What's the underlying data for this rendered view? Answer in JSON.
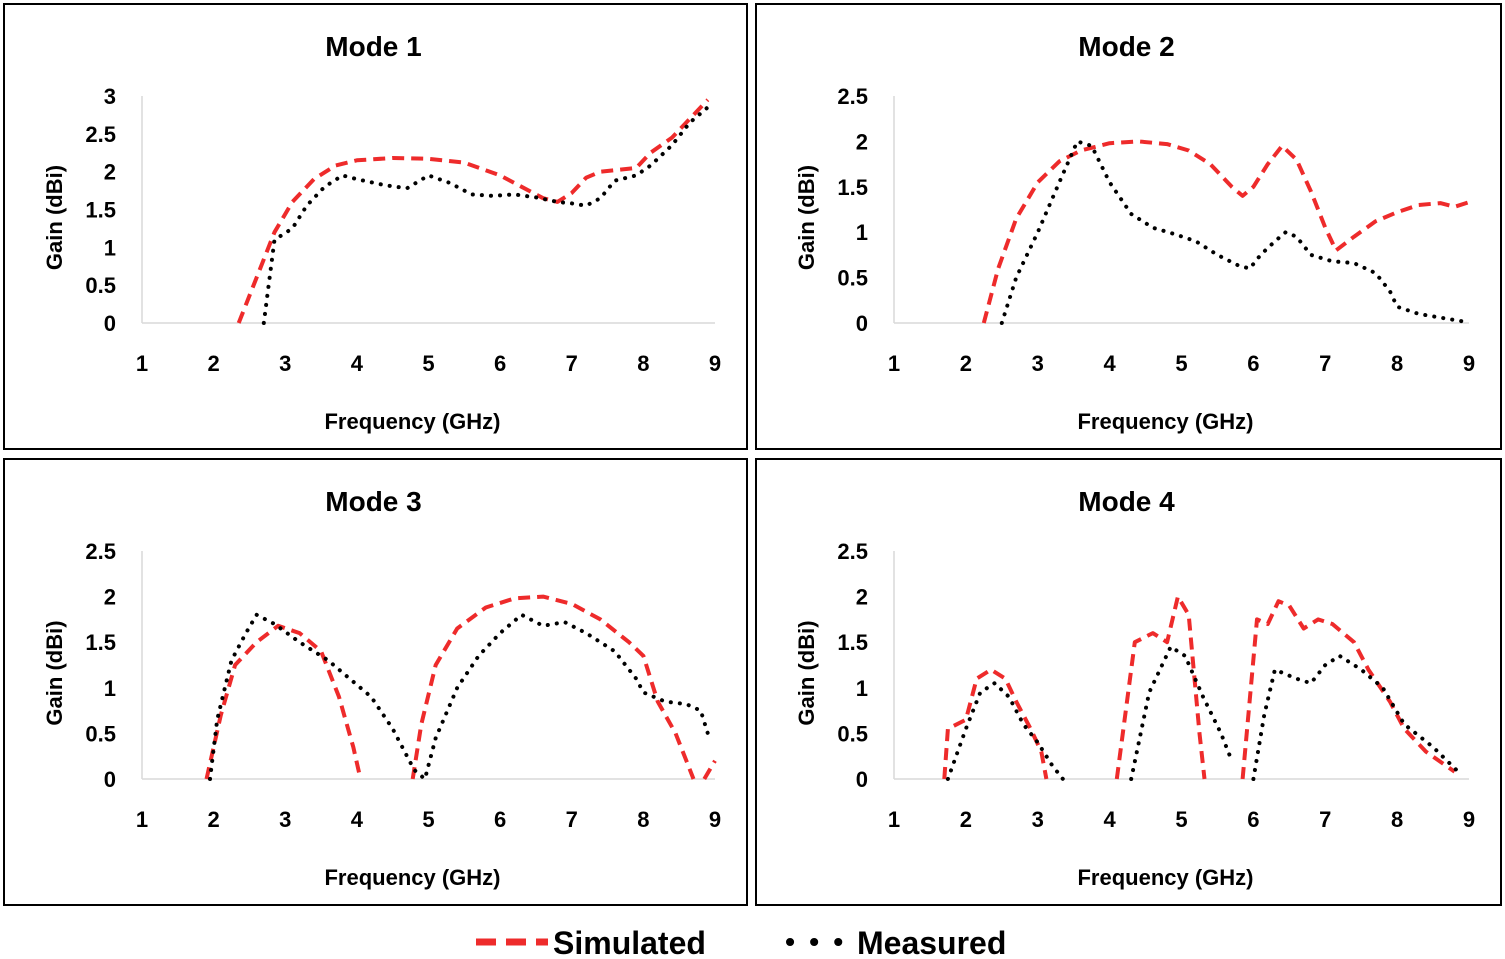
{
  "legend": {
    "simulated": "Simulated",
    "measured": "Measured",
    "simulated_color": "#ee2b2b",
    "measured_color": "#000000"
  },
  "chart_data": [
    {
      "type": "line",
      "title": "Mode 1",
      "xlabel": "Frequency (GHz)",
      "ylabel": "Gain (dBi)",
      "xlim": [
        1,
        9
      ],
      "ylim": [
        0,
        3
      ],
      "xticks": [
        1,
        2,
        3,
        4,
        5,
        6,
        7,
        8,
        9
      ],
      "yticks": [
        0,
        0.5,
        1,
        1.5,
        2,
        2.5,
        3
      ],
      "ytick_labels": [
        "0",
        "0.5",
        "1",
        "1.5",
        "2",
        "2.5",
        "3"
      ],
      "series": [
        {
          "name": "Simulated",
          "x": [
            2.35,
            2.6,
            2.85,
            3.1,
            3.4,
            3.7,
            4.0,
            4.5,
            5.0,
            5.5,
            6.0,
            6.3,
            6.6,
            6.8,
            7.0,
            7.2,
            7.4,
            7.6,
            7.9,
            8.1,
            8.4,
            8.7,
            8.9
          ],
          "y": [
            0,
            0.6,
            1.2,
            1.6,
            1.9,
            2.08,
            2.15,
            2.18,
            2.17,
            2.12,
            1.95,
            1.8,
            1.65,
            1.6,
            1.72,
            1.92,
            2.0,
            2.02,
            2.05,
            2.25,
            2.45,
            2.75,
            2.95
          ]
        },
        {
          "name": "Measured",
          "x": [
            2.7,
            2.85,
            3.1,
            3.3,
            3.55,
            3.8,
            4.0,
            4.4,
            4.7,
            5.0,
            5.3,
            5.6,
            5.9,
            6.2,
            6.5,
            6.8,
            7.0,
            7.2,
            7.4,
            7.6,
            7.9,
            8.1,
            8.4,
            8.65,
            8.9
          ],
          "y": [
            0,
            1.1,
            1.25,
            1.55,
            1.8,
            1.95,
            1.9,
            1.82,
            1.78,
            1.95,
            1.85,
            1.7,
            1.68,
            1.7,
            1.66,
            1.6,
            1.58,
            1.55,
            1.65,
            1.88,
            1.95,
            2.08,
            2.35,
            2.65,
            2.85
          ]
        }
      ]
    },
    {
      "type": "line",
      "title": "Mode 2",
      "xlabel": "Frequency (GHz)",
      "ylabel": "Gain (dBi)",
      "xlim": [
        1,
        9
      ],
      "ylim": [
        0,
        2.5
      ],
      "xticks": [
        1,
        2,
        3,
        4,
        5,
        6,
        7,
        8,
        9
      ],
      "yticks": [
        0,
        0.5,
        1,
        1.5,
        2,
        2.5
      ],
      "ytick_labels": [
        "0",
        "0.5",
        "1",
        "1.5",
        "2",
        "2.5"
      ],
      "series": [
        {
          "name": "Simulated",
          "x": [
            2.25,
            2.45,
            2.7,
            3.0,
            3.3,
            3.6,
            4.0,
            4.4,
            4.8,
            5.1,
            5.4,
            5.7,
            5.85,
            6.0,
            6.2,
            6.4,
            6.6,
            6.8,
            7.0,
            7.15,
            7.4,
            7.7,
            8.0,
            8.3,
            8.6,
            8.8,
            9.0
          ],
          "y": [
            0,
            0.6,
            1.15,
            1.55,
            1.78,
            1.9,
            1.98,
            2.0,
            1.97,
            1.9,
            1.75,
            1.5,
            1.4,
            1.5,
            1.75,
            1.95,
            1.8,
            1.45,
            1.05,
            0.8,
            0.95,
            1.12,
            1.22,
            1.3,
            1.32,
            1.28,
            1.33
          ]
        },
        {
          "name": "Measured",
          "x": [
            2.5,
            2.7,
            3.0,
            3.3,
            3.55,
            3.75,
            4.0,
            4.3,
            4.6,
            4.9,
            5.2,
            5.5,
            5.8,
            5.95,
            6.1,
            6.3,
            6.45,
            6.6,
            6.8,
            7.1,
            7.4,
            7.7,
            7.9,
            8.0,
            8.3,
            8.6,
            8.9
          ],
          "y": [
            0,
            0.5,
            1.0,
            1.55,
            2.0,
            1.95,
            1.55,
            1.2,
            1.05,
            0.98,
            0.9,
            0.75,
            0.63,
            0.6,
            0.75,
            0.9,
            1.0,
            0.95,
            0.75,
            0.68,
            0.66,
            0.55,
            0.35,
            0.18,
            0.1,
            0.06,
            0.02
          ]
        }
      ]
    },
    {
      "type": "line",
      "title": "Mode 3",
      "xlabel": "Frequency (GHz)",
      "ylabel": "Gain (dBi)",
      "xlim": [
        1,
        9
      ],
      "ylim": [
        0,
        2.5
      ],
      "xticks": [
        1,
        2,
        3,
        4,
        5,
        6,
        7,
        8,
        9
      ],
      "yticks": [
        0,
        0.5,
        1,
        1.5,
        2,
        2.5
      ],
      "ytick_labels": [
        "0",
        "0.5",
        "1",
        "1.5",
        "2",
        "2.5"
      ],
      "series": [
        {
          "name": "Simulated",
          "x": [
            1.9,
            2.1,
            2.3,
            2.6,
            2.9,
            3.2,
            3.5,
            3.75,
            3.95,
            4.05,
            null,
            4.78,
            4.9,
            5.1,
            5.4,
            5.8,
            6.2,
            6.6,
            7.0,
            7.4,
            7.8,
            8.0,
            8.2,
            8.45,
            8.6,
            8.7,
            null,
            8.85,
            9.0
          ],
          "y": [
            0,
            0.7,
            1.25,
            1.5,
            1.68,
            1.6,
            1.4,
            0.9,
            0.35,
            0,
            null,
            0,
            0.6,
            1.25,
            1.65,
            1.88,
            1.98,
            2.0,
            1.92,
            1.75,
            1.5,
            1.35,
            0.85,
            0.5,
            0.2,
            0,
            null,
            0,
            0.2
          ]
        },
        {
          "name": "Measured",
          "x": [
            1.95,
            2.05,
            2.25,
            2.45,
            2.6,
            2.85,
            3.2,
            3.6,
            3.9,
            4.2,
            4.5,
            4.8,
            4.95,
            5.1,
            5.4,
            5.7,
            6.0,
            6.3,
            6.6,
            6.9,
            7.2,
            7.6,
            7.9,
            8.0,
            8.3,
            8.6,
            8.8,
            8.9
          ],
          "y": [
            0,
            0.65,
            1.3,
            1.6,
            1.8,
            1.7,
            1.5,
            1.3,
            1.1,
            0.9,
            0.55,
            0.1,
            0,
            0.45,
            1.0,
            1.35,
            1.6,
            1.8,
            1.68,
            1.72,
            1.6,
            1.4,
            1.1,
            0.95,
            0.85,
            0.82,
            0.75,
            0.5
          ]
        }
      ]
    },
    {
      "type": "line",
      "title": "Mode 4",
      "xlabel": "Frequency (GHz)",
      "ylabel": "Gain (dBi)",
      "xlim": [
        1,
        9
      ],
      "ylim": [
        0,
        2.5
      ],
      "xticks": [
        1,
        2,
        3,
        4,
        5,
        6,
        7,
        8,
        9
      ],
      "yticks": [
        0,
        0.5,
        1,
        1.5,
        2,
        2.5
      ],
      "ytick_labels": [
        "0",
        "0.5",
        "1",
        "1.5",
        "2",
        "2.5"
      ],
      "series": [
        {
          "name": "Simulated",
          "x": [
            1.7,
            1.75,
            2.0,
            2.15,
            2.35,
            2.55,
            2.7,
            2.9,
            3.05,
            3.12,
            null,
            4.1,
            4.35,
            4.6,
            4.8,
            4.95,
            5.1,
            5.25,
            5.32,
            null,
            5.85,
            6.05,
            6.2,
            6.35,
            6.5,
            6.7,
            6.9,
            7.1,
            7.4,
            7.6,
            7.9,
            8.1,
            8.4,
            8.8
          ],
          "y": [
            0,
            0.55,
            0.65,
            1.1,
            1.2,
            1.1,
            0.85,
            0.55,
            0.3,
            0,
            null,
            0,
            1.5,
            1.6,
            1.5,
            2.0,
            1.8,
            0.5,
            0,
            null,
            0,
            1.75,
            1.7,
            1.95,
            1.9,
            1.65,
            1.75,
            1.7,
            1.5,
            1.2,
            0.85,
            0.55,
            0.3,
            0.08
          ]
        },
        {
          "name": "Measured",
          "x": [
            1.75,
            2.0,
            2.2,
            2.4,
            2.6,
            2.8,
            3.0,
            3.2,
            3.35,
            null,
            4.3,
            4.55,
            4.85,
            5.05,
            5.3,
            5.55,
            5.7,
            null,
            6.0,
            6.15,
            6.3,
            6.6,
            6.8,
            7.0,
            7.2,
            7.5,
            7.8,
            8.1,
            8.5,
            8.85
          ],
          "y": [
            0,
            0.55,
            0.95,
            1.05,
            0.9,
            0.6,
            0.4,
            0.15,
            0,
            null,
            0,
            0.95,
            1.45,
            1.35,
            0.9,
            0.5,
            0.2,
            null,
            0,
            0.7,
            1.2,
            1.1,
            1.05,
            1.25,
            1.35,
            1.2,
            1.0,
            0.6,
            0.35,
            0.08
          ]
        }
      ]
    }
  ]
}
